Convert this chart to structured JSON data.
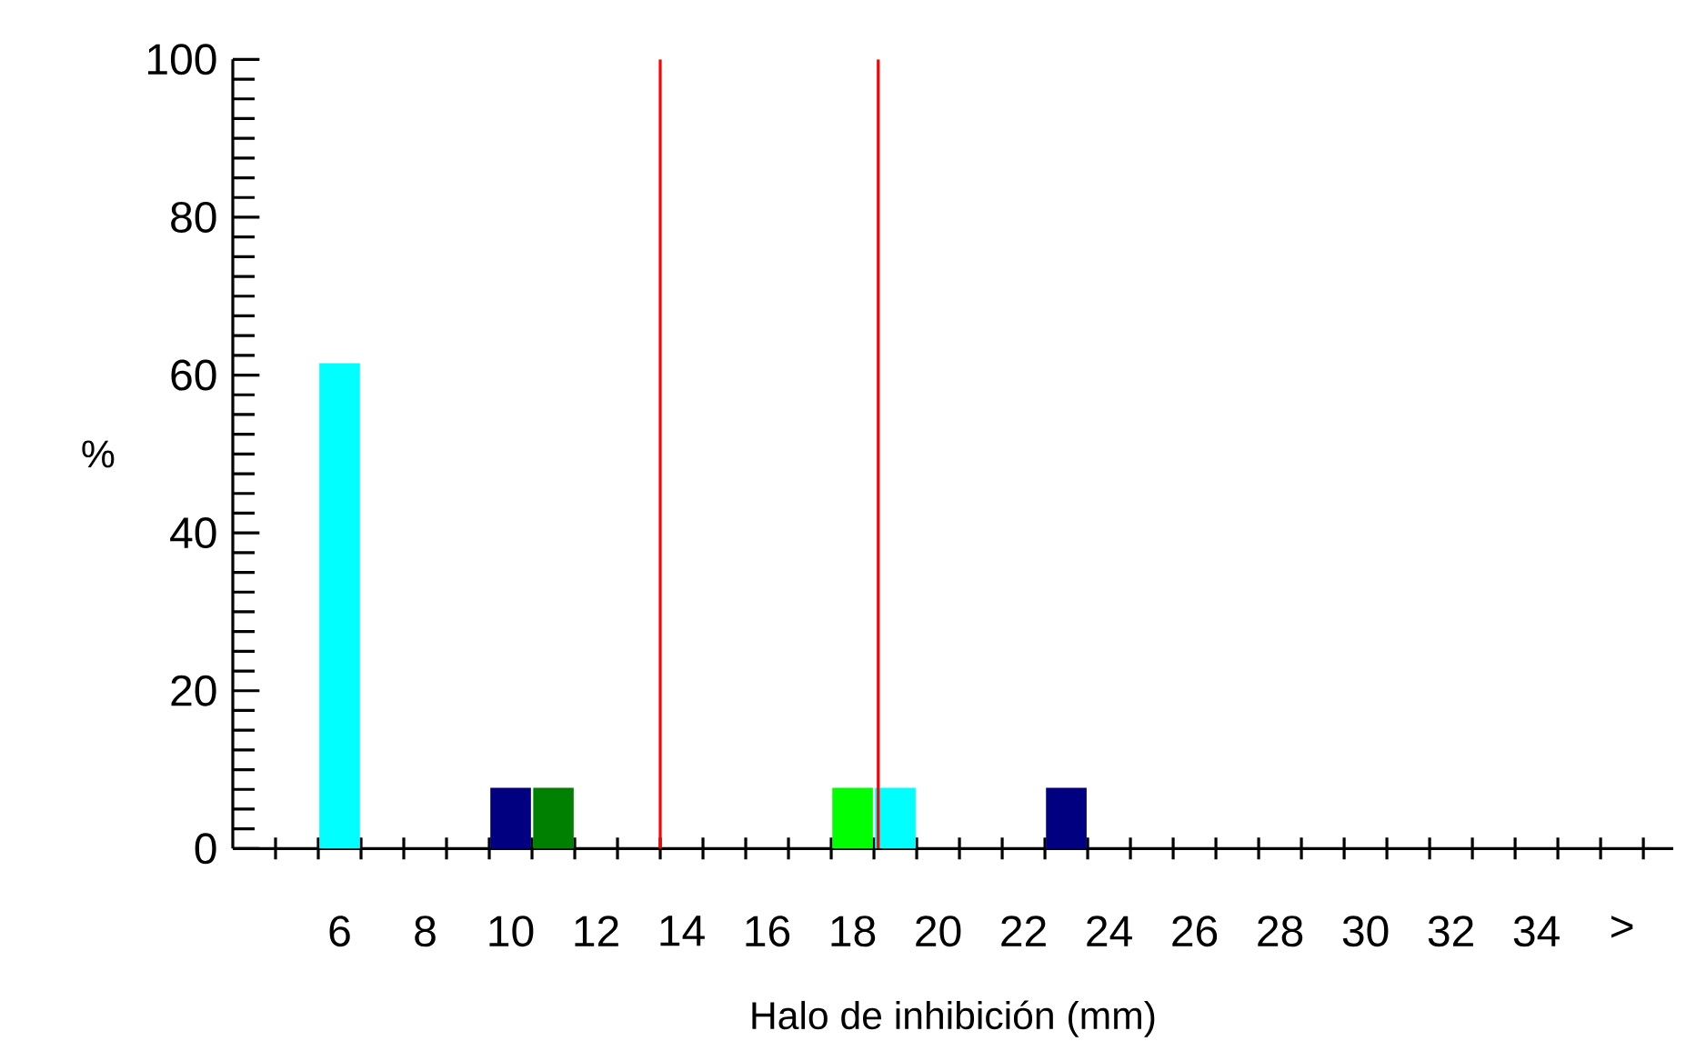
{
  "chart_data": {
    "type": "bar",
    "xlabel": "Halo de inhibición (mm)",
    "ylabel": "%",
    "x": [
      6,
      10,
      11,
      18,
      19,
      23
    ],
    "values": [
      61.5,
      7.7,
      7.7,
      7.7,
      7.7,
      7.7
    ],
    "colors": [
      "#00ffff",
      "#000080",
      "#008000",
      "#00ff00",
      "#00ffff",
      "#000080"
    ],
    "xlim": [
      3.5,
      37.2
    ],
    "xticks": [
      6,
      8,
      10,
      12,
      14,
      16,
      18,
      20,
      22,
      24,
      26,
      28,
      30,
      32,
      34,
      {
        "value": 36,
        "label": ">"
      },
      {
        "value": 4.5,
        "label": null
      },
      {
        "value": 5.5,
        "label": null
      },
      {
        "value": 6.5,
        "label": null
      },
      {
        "value": 7.5,
        "label": null
      },
      {
        "value": 8.5,
        "label": null
      },
      {
        "value": 9.5,
        "label": null
      },
      {
        "value": 10.5,
        "label": null
      },
      {
        "value": 11.5,
        "label": null
      },
      {
        "value": 12.5,
        "label": null
      },
      {
        "value": 13.5,
        "label": null
      },
      {
        "value": 14.5,
        "label": null
      },
      {
        "value": 15.5,
        "label": null
      },
      {
        "value": 16.5,
        "label": null
      },
      {
        "value": 17.5,
        "label": null
      },
      {
        "value": 18.5,
        "label": null
      },
      {
        "value": 19.5,
        "label": null
      },
      {
        "value": 20.5,
        "label": null
      },
      {
        "value": 21.5,
        "label": null
      },
      {
        "value": 22.5,
        "label": null
      },
      {
        "value": 23.5,
        "label": null
      },
      {
        "value": 24.5,
        "label": null
      },
      {
        "value": 25.5,
        "label": null
      },
      {
        "value": 26.5,
        "label": null
      },
      {
        "value": 27.5,
        "label": null
      },
      {
        "value": 28.5,
        "label": null
      },
      {
        "value": 29.5,
        "label": null
      },
      {
        "value": 30.5,
        "label": null
      },
      {
        "value": 31.5,
        "label": null
      },
      {
        "value": 32.5,
        "label": null
      },
      {
        "value": 33.5,
        "label": null
      },
      {
        "value": 34.5,
        "label": null
      },
      {
        "value": 35.5,
        "label": null
      },
      {
        "value": 36.5,
        "label": null
      }
    ],
    "ylim": [
      0,
      100
    ],
    "yticks": [
      0,
      20,
      40,
      60,
      80,
      100,
      {
        "value": 2.5,
        "label": null
      },
      {
        "value": 5,
        "label": null
      },
      {
        "value": 7.5,
        "label": null
      },
      {
        "value": 10,
        "label": null
      },
      {
        "value": 12.5,
        "label": null
      },
      {
        "value": 15,
        "label": null
      },
      {
        "value": 17.5,
        "label": null
      },
      {
        "value": 22.5,
        "label": null
      },
      {
        "value": 25,
        "label": null
      },
      {
        "value": 27.5,
        "label": null
      },
      {
        "value": 30,
        "label": null
      },
      {
        "value": 32.5,
        "label": null
      },
      {
        "value": 35,
        "label": null
      },
      {
        "value": 37.5,
        "label": null
      },
      {
        "value": 42.5,
        "label": null
      },
      {
        "value": 45,
        "label": null
      },
      {
        "value": 47.5,
        "label": null
      },
      {
        "value": 50,
        "label": null
      },
      {
        "value": 52.5,
        "label": null
      },
      {
        "value": 55,
        "label": null
      },
      {
        "value": 57.5,
        "label": null
      },
      {
        "value": 62.5,
        "label": null
      },
      {
        "value": 65,
        "label": null
      },
      {
        "value": 67.5,
        "label": null
      },
      {
        "value": 70,
        "label": null
      },
      {
        "value": 72.5,
        "label": null
      },
      {
        "value": 75,
        "label": null
      },
      {
        "value": 77.5,
        "label": null
      },
      {
        "value": 82.5,
        "label": null
      },
      {
        "value": 85,
        "label": null
      },
      {
        "value": 87.5,
        "label": null
      },
      {
        "value": 90,
        "label": null
      },
      {
        "value": 92.5,
        "label": null
      },
      {
        "value": 95,
        "label": null
      },
      {
        "value": 97.5,
        "label": null
      }
    ],
    "ref_lines": [
      {
        "axis": "x",
        "value": 13.5,
        "color": "#ff0000"
      },
      {
        "axis": "x",
        "value": 18.6,
        "color": "#ff0000"
      }
    ]
  }
}
